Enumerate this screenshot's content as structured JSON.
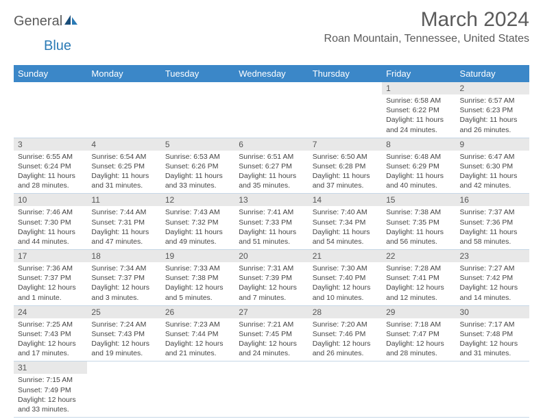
{
  "logo": {
    "text1": "General",
    "text2": "Blue"
  },
  "title": "March 2024",
  "location": "Roan Mountain, Tennessee, United States",
  "colors": {
    "header_bg": "#3b87c8",
    "header_text": "#ffffff",
    "daynum_bg": "#e8e8e8",
    "border": "#c5d6e6",
    "logo_gray": "#5a5a5a",
    "logo_blue": "#2a7ab5"
  },
  "weekdays": [
    "Sunday",
    "Monday",
    "Tuesday",
    "Wednesday",
    "Thursday",
    "Friday",
    "Saturday"
  ],
  "weeks": [
    [
      null,
      null,
      null,
      null,
      null,
      {
        "n": "1",
        "sr": "Sunrise: 6:58 AM",
        "ss": "Sunset: 6:22 PM",
        "d1": "Daylight: 11 hours",
        "d2": "and 24 minutes."
      },
      {
        "n": "2",
        "sr": "Sunrise: 6:57 AM",
        "ss": "Sunset: 6:23 PM",
        "d1": "Daylight: 11 hours",
        "d2": "and 26 minutes."
      }
    ],
    [
      {
        "n": "3",
        "sr": "Sunrise: 6:55 AM",
        "ss": "Sunset: 6:24 PM",
        "d1": "Daylight: 11 hours",
        "d2": "and 28 minutes."
      },
      {
        "n": "4",
        "sr": "Sunrise: 6:54 AM",
        "ss": "Sunset: 6:25 PM",
        "d1": "Daylight: 11 hours",
        "d2": "and 31 minutes."
      },
      {
        "n": "5",
        "sr": "Sunrise: 6:53 AM",
        "ss": "Sunset: 6:26 PM",
        "d1": "Daylight: 11 hours",
        "d2": "and 33 minutes."
      },
      {
        "n": "6",
        "sr": "Sunrise: 6:51 AM",
        "ss": "Sunset: 6:27 PM",
        "d1": "Daylight: 11 hours",
        "d2": "and 35 minutes."
      },
      {
        "n": "7",
        "sr": "Sunrise: 6:50 AM",
        "ss": "Sunset: 6:28 PM",
        "d1": "Daylight: 11 hours",
        "d2": "and 37 minutes."
      },
      {
        "n": "8",
        "sr": "Sunrise: 6:48 AM",
        "ss": "Sunset: 6:29 PM",
        "d1": "Daylight: 11 hours",
        "d2": "and 40 minutes."
      },
      {
        "n": "9",
        "sr": "Sunrise: 6:47 AM",
        "ss": "Sunset: 6:30 PM",
        "d1": "Daylight: 11 hours",
        "d2": "and 42 minutes."
      }
    ],
    [
      {
        "n": "10",
        "sr": "Sunrise: 7:46 AM",
        "ss": "Sunset: 7:30 PM",
        "d1": "Daylight: 11 hours",
        "d2": "and 44 minutes."
      },
      {
        "n": "11",
        "sr": "Sunrise: 7:44 AM",
        "ss": "Sunset: 7:31 PM",
        "d1": "Daylight: 11 hours",
        "d2": "and 47 minutes."
      },
      {
        "n": "12",
        "sr": "Sunrise: 7:43 AM",
        "ss": "Sunset: 7:32 PM",
        "d1": "Daylight: 11 hours",
        "d2": "and 49 minutes."
      },
      {
        "n": "13",
        "sr": "Sunrise: 7:41 AM",
        "ss": "Sunset: 7:33 PM",
        "d1": "Daylight: 11 hours",
        "d2": "and 51 minutes."
      },
      {
        "n": "14",
        "sr": "Sunrise: 7:40 AM",
        "ss": "Sunset: 7:34 PM",
        "d1": "Daylight: 11 hours",
        "d2": "and 54 minutes."
      },
      {
        "n": "15",
        "sr": "Sunrise: 7:38 AM",
        "ss": "Sunset: 7:35 PM",
        "d1": "Daylight: 11 hours",
        "d2": "and 56 minutes."
      },
      {
        "n": "16",
        "sr": "Sunrise: 7:37 AM",
        "ss": "Sunset: 7:36 PM",
        "d1": "Daylight: 11 hours",
        "d2": "and 58 minutes."
      }
    ],
    [
      {
        "n": "17",
        "sr": "Sunrise: 7:36 AM",
        "ss": "Sunset: 7:37 PM",
        "d1": "Daylight: 12 hours",
        "d2": "and 1 minute."
      },
      {
        "n": "18",
        "sr": "Sunrise: 7:34 AM",
        "ss": "Sunset: 7:37 PM",
        "d1": "Daylight: 12 hours",
        "d2": "and 3 minutes."
      },
      {
        "n": "19",
        "sr": "Sunrise: 7:33 AM",
        "ss": "Sunset: 7:38 PM",
        "d1": "Daylight: 12 hours",
        "d2": "and 5 minutes."
      },
      {
        "n": "20",
        "sr": "Sunrise: 7:31 AM",
        "ss": "Sunset: 7:39 PM",
        "d1": "Daylight: 12 hours",
        "d2": "and 7 minutes."
      },
      {
        "n": "21",
        "sr": "Sunrise: 7:30 AM",
        "ss": "Sunset: 7:40 PM",
        "d1": "Daylight: 12 hours",
        "d2": "and 10 minutes."
      },
      {
        "n": "22",
        "sr": "Sunrise: 7:28 AM",
        "ss": "Sunset: 7:41 PM",
        "d1": "Daylight: 12 hours",
        "d2": "and 12 minutes."
      },
      {
        "n": "23",
        "sr": "Sunrise: 7:27 AM",
        "ss": "Sunset: 7:42 PM",
        "d1": "Daylight: 12 hours",
        "d2": "and 14 minutes."
      }
    ],
    [
      {
        "n": "24",
        "sr": "Sunrise: 7:25 AM",
        "ss": "Sunset: 7:43 PM",
        "d1": "Daylight: 12 hours",
        "d2": "and 17 minutes."
      },
      {
        "n": "25",
        "sr": "Sunrise: 7:24 AM",
        "ss": "Sunset: 7:43 PM",
        "d1": "Daylight: 12 hours",
        "d2": "and 19 minutes."
      },
      {
        "n": "26",
        "sr": "Sunrise: 7:23 AM",
        "ss": "Sunset: 7:44 PM",
        "d1": "Daylight: 12 hours",
        "d2": "and 21 minutes."
      },
      {
        "n": "27",
        "sr": "Sunrise: 7:21 AM",
        "ss": "Sunset: 7:45 PM",
        "d1": "Daylight: 12 hours",
        "d2": "and 24 minutes."
      },
      {
        "n": "28",
        "sr": "Sunrise: 7:20 AM",
        "ss": "Sunset: 7:46 PM",
        "d1": "Daylight: 12 hours",
        "d2": "and 26 minutes."
      },
      {
        "n": "29",
        "sr": "Sunrise: 7:18 AM",
        "ss": "Sunset: 7:47 PM",
        "d1": "Daylight: 12 hours",
        "d2": "and 28 minutes."
      },
      {
        "n": "30",
        "sr": "Sunrise: 7:17 AM",
        "ss": "Sunset: 7:48 PM",
        "d1": "Daylight: 12 hours",
        "d2": "and 31 minutes."
      }
    ],
    [
      {
        "n": "31",
        "sr": "Sunrise: 7:15 AM",
        "ss": "Sunset: 7:49 PM",
        "d1": "Daylight: 12 hours",
        "d2": "and 33 minutes."
      },
      null,
      null,
      null,
      null,
      null,
      null
    ]
  ]
}
